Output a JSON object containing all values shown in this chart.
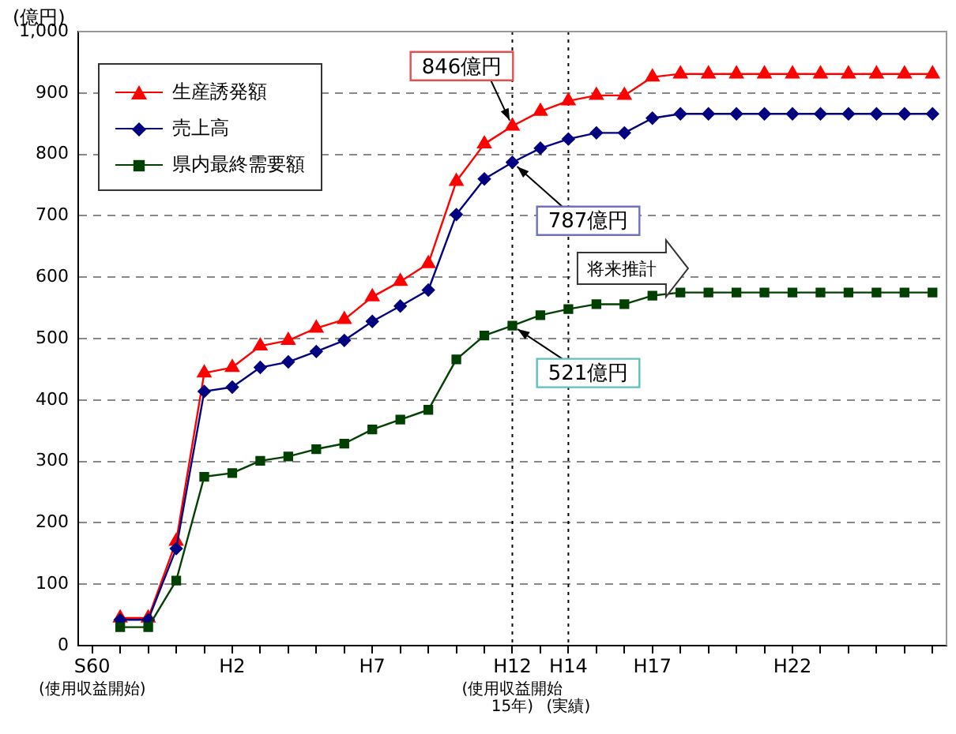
{
  "chart_data": {
    "type": "line",
    "ylabel": "(億円)",
    "categories": [
      "S60\n(使用収益開始)",
      null,
      null,
      null,
      null,
      "H2",
      null,
      null,
      null,
      null,
      "H7",
      null,
      null,
      null,
      null,
      "H12\n(使用収益開始\n15年)",
      null,
      "H14\n(実績)",
      null,
      null,
      "H17",
      null,
      null,
      null,
      null,
      "H22",
      null,
      null,
      null,
      null,
      null
    ],
    "series": [
      {
        "name": "生産誘発額",
        "color": "#ff0000",
        "marker": "triangle",
        "values": [
          null,
          45,
          45,
          170,
          444,
          453,
          488,
          497,
          517,
          531,
          568,
          593,
          622,
          756,
          817,
          846,
          870,
          887,
          896,
          896,
          926,
          931,
          931,
          931,
          931,
          931,
          931,
          931,
          931,
          931,
          931
        ]
      },
      {
        "name": "売上高",
        "color": "#000080",
        "marker": "diamond",
        "values": [
          null,
          42,
          42,
          158,
          414,
          421,
          453,
          462,
          479,
          497,
          528,
          553,
          579,
          702,
          760,
          787,
          810,
          825,
          835,
          835,
          859,
          866,
          866,
          866,
          866,
          866,
          866,
          866,
          866,
          866,
          866
        ]
      },
      {
        "name": "県内最終需要額",
        "color": "#004000",
        "marker": "square",
        "values": [
          null,
          30,
          30,
          106,
          275,
          281,
          301,
          308,
          320,
          329,
          352,
          368,
          384,
          466,
          505,
          521,
          538,
          548,
          556,
          556,
          570,
          575,
          575,
          575,
          575,
          575,
          575,
          575,
          575,
          575,
          575
        ]
      }
    ],
    "ylim": [
      0,
      1000
    ],
    "yticks": [
      0,
      100,
      200,
      300,
      400,
      500,
      600,
      700,
      800,
      900,
      {
        "value": 1000,
        "label": "1,000"
      }
    ],
    "grid": "y",
    "legend": "top left",
    "line_style": "solid",
    "ref_lines": [
      {
        "axis": "x",
        "value": "H12\n(使用収益開始\n15年)",
        "color": "#000000",
        "line_style": "dotted"
      },
      {
        "axis": "x",
        "value": "H14\n(実績)",
        "color": "#000000",
        "line_style": "dotted"
      }
    ],
    "annotations": [
      {
        "text": "846億円",
        "x": "H12\n(使用収益開始\n15年)",
        "y": 846
      },
      {
        "text": "787億円",
        "x": "H12\n(使用収益開始\n15年)",
        "y": 787
      },
      {
        "text": "521億円",
        "x": "H12\n(使用収益開始\n15年)",
        "y": 521
      },
      "将来推計"
    ]
  }
}
